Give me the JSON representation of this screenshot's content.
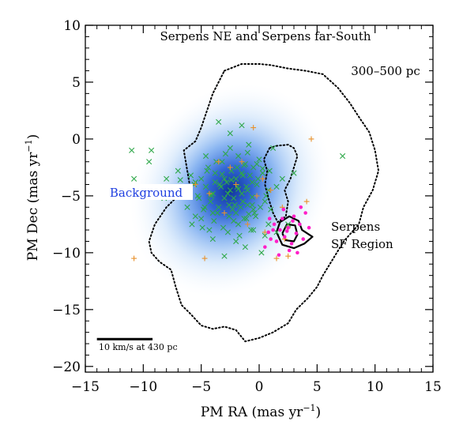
{
  "chart_data": {
    "type": "scatter",
    "title": "Serpens NE and Serpens far-South",
    "xlabel": "PM RA (mas yr",
    "xlabel_sup": "−1",
    "xlabel_end": ")",
    "ylabel": "PM Dec (mas yr",
    "ylabel_sup": "−1",
    "ylabel_end": ")",
    "xlim": [
      -15,
      15
    ],
    "ylim": [
      -20.5,
      10
    ],
    "x_ticks": [
      -15,
      -10,
      -5,
      0,
      5,
      10,
      15
    ],
    "x_tick_labels": [
      "−15",
      "−10",
      "−5",
      "0",
      "5",
      "10",
      "15"
    ],
    "y_ticks": [
      -20,
      -15,
      -10,
      -5,
      0,
      5,
      10
    ],
    "y_tick_labels": [
      "−20",
      "−15",
      "−10",
      "−5",
      "0",
      "5",
      "10"
    ],
    "grid": false,
    "annotations": {
      "distance_range": "300–500 pc",
      "background": "Background",
      "sf_region_line1": "Serpens",
      "sf_region_line2": "SF Region",
      "scale_bar": "10 km/s at 430 pc"
    },
    "colors": {
      "background_density": "#1a5ad6",
      "green_cross": "#2fa84a",
      "orange_plus": "#e8912c",
      "magenta_dot": "#ff1fc8",
      "contour": "#000000",
      "background_label": "#1f3fe0"
    },
    "background_density": {
      "center": [
        -2.5,
        -4.5
      ],
      "sigma_major": 4.6,
      "sigma_minor": 3.6,
      "tilt_deg": 55
    },
    "field_boundary": [
      [
        -3.0,
        6.0
      ],
      [
        -1.5,
        6.6
      ],
      [
        0.0,
        6.6
      ],
      [
        1.0,
        6.5
      ],
      [
        2.5,
        6.2
      ],
      [
        4.0,
        6.0
      ],
      [
        5.5,
        5.7
      ],
      [
        6.8,
        4.5
      ],
      [
        7.8,
        3.2
      ],
      [
        8.7,
        1.8
      ],
      [
        9.5,
        0.6
      ],
      [
        10.0,
        -1.0
      ],
      [
        10.3,
        -2.8
      ],
      [
        9.8,
        -4.5
      ],
      [
        9.0,
        -6.0
      ],
      [
        8.6,
        -7.5
      ],
      [
        7.3,
        -9.0
      ],
      [
        6.4,
        -10.5
      ],
      [
        5.5,
        -12.0
      ],
      [
        5.0,
        -13.0
      ],
      [
        4.2,
        -14.0
      ],
      [
        3.2,
        -15.0
      ],
      [
        2.5,
        -16.2
      ],
      [
        1.2,
        -17.0
      ],
      [
        0.0,
        -17.5
      ],
      [
        -1.2,
        -17.8
      ],
      [
        -2.0,
        -16.8
      ],
      [
        -3.0,
        -16.5
      ],
      [
        -4.0,
        -16.7
      ],
      [
        -5.0,
        -16.4
      ],
      [
        -6.0,
        -15.3
      ],
      [
        -6.7,
        -14.6
      ],
      [
        -7.2,
        -13.0
      ],
      [
        -7.6,
        -11.5
      ],
      [
        -8.6,
        -10.8
      ],
      [
        -9.3,
        -10.0
      ],
      [
        -9.5,
        -9.0
      ],
      [
        -9.0,
        -7.5
      ],
      [
        -8.0,
        -6.0
      ],
      [
        -7.0,
        -5.0
      ],
      [
        -6.0,
        -4.0
      ],
      [
        -6.5,
        -1.0
      ],
      [
        -5.5,
        -0.2
      ],
      [
        -5.0,
        1.0
      ],
      [
        -4.5,
        2.5
      ],
      [
        -4.0,
        4.0
      ],
      [
        -3.5,
        5.0
      ],
      [
        -3.0,
        6.0
      ]
    ],
    "inner_boundary": [
      [
        0.9,
        -0.8
      ],
      [
        1.5,
        -0.6
      ],
      [
        2.5,
        -0.5
      ],
      [
        3.0,
        -0.8
      ],
      [
        3.3,
        -1.5
      ],
      [
        3.0,
        -2.5
      ],
      [
        2.7,
        -3.5
      ],
      [
        2.2,
        -4.5
      ],
      [
        2.5,
        -5.5
      ],
      [
        2.3,
        -6.8
      ],
      [
        1.6,
        -7.3
      ],
      [
        1.2,
        -6.5
      ],
      [
        0.8,
        -5.2
      ],
      [
        0.5,
        -4.0
      ],
      [
        0.7,
        -2.8
      ],
      [
        0.4,
        -1.8
      ],
      [
        0.9,
        -0.8
      ]
    ],
    "contours": [
      [
        [
          1.5,
          -8.2
        ],
        [
          1.8,
          -7.3
        ],
        [
          2.6,
          -6.8
        ],
        [
          3.4,
          -7.2
        ],
        [
          3.7,
          -8.0
        ],
        [
          4.6,
          -8.6
        ],
        [
          3.9,
          -9.2
        ],
        [
          3.0,
          -9.6
        ],
        [
          2.0,
          -9.3
        ],
        [
          1.5,
          -8.2
        ]
      ],
      [
        [
          2.0,
          -8.3
        ],
        [
          2.4,
          -7.5
        ],
        [
          3.1,
          -7.6
        ],
        [
          3.3,
          -8.4
        ],
        [
          3.0,
          -9.0
        ],
        [
          2.3,
          -8.9
        ],
        [
          2.0,
          -8.3
        ]
      ]
    ],
    "series": [
      {
        "name": "",
        "marker": "x",
        "color": "#2fa84a",
        "x": [
          -11.0,
          -10.8,
          -9.3,
          -9.5,
          -8.0,
          -7.0,
          -6.5,
          -6.2,
          -5.9,
          -5.6,
          -5.3,
          -5.0,
          -4.8,
          -4.6,
          -4.4,
          -4.2,
          -4.0,
          -3.8,
          -3.6,
          -3.4,
          -3.2,
          -3.0,
          -2.9,
          -2.8,
          -2.6,
          -2.5,
          -2.4,
          -2.2,
          -2.1,
          -2.0,
          -1.9,
          -1.8,
          -1.6,
          -1.5,
          -1.4,
          -1.2,
          -1.1,
          -1.0,
          -0.9,
          -0.8,
          -0.6,
          -0.5,
          -0.4,
          -0.2,
          0.0,
          0.3,
          0.6,
          0.9,
          1.2,
          1.5,
          -5.8,
          -5.5,
          -4.9,
          -4.3,
          -3.9,
          -3.5,
          -3.1,
          -2.7,
          -2.3,
          -1.7,
          -1.3,
          -0.7,
          -0.3,
          0.5,
          1.0,
          -4.1,
          -3.3,
          -2.2,
          -1.5,
          -0.6,
          0.1,
          0.8,
          -4.6,
          -3.7,
          -2.5,
          -1.9,
          -1.0,
          -0.1,
          -6.0,
          -4.5,
          -3.0,
          -2.0,
          -1.0,
          0.5,
          -3.5,
          -2.5,
          -1.5,
          2.0,
          3.0,
          7.2,
          0.2,
          -1.2,
          -3.0,
          -4.0,
          -2.0,
          -0.5,
          1.5,
          -7.5,
          -5.0,
          -1.8,
          -0.5,
          0.8,
          -6.8,
          -3.8,
          -2.7,
          -1.4,
          -0.2,
          -5.2,
          -4.0,
          -2.6,
          -1.1,
          0.3,
          -3.2,
          -1.8,
          -0.6,
          -4.7,
          -2.4,
          -1.3,
          2.5,
          -8.2,
          -5.5,
          -4.2,
          -0.9
        ],
        "y": [
          -1.0,
          -3.5,
          -1.0,
          -2.0,
          -3.5,
          -2.8,
          -4.5,
          -6.0,
          -3.2,
          -4.0,
          -5.0,
          -3.5,
          -6.2,
          -4.2,
          -2.5,
          -5.5,
          -4.8,
          -3.0,
          -6.5,
          -4.0,
          -2.0,
          -5.2,
          -1.3,
          -3.8,
          -6.8,
          -4.5,
          -2.8,
          -7.2,
          -5.8,
          -3.5,
          -4.2,
          -1.5,
          -6.0,
          -3.0,
          -5.5,
          -2.2,
          -7.0,
          -4.5,
          -0.5,
          -3.2,
          -5.8,
          -2.5,
          -6.5,
          -4.0,
          -1.8,
          -3.0,
          -5.0,
          -2.8,
          -0.8,
          -4.2,
          -7.5,
          -6.8,
          -7.8,
          -8.0,
          -7.2,
          -6.0,
          -7.8,
          -8.2,
          -6.2,
          -8.5,
          -7.0,
          -8.0,
          -6.8,
          -5.5,
          -6.2,
          -5.0,
          -4.2,
          -5.2,
          -4.8,
          -3.8,
          -6.0,
          -7.5,
          -1.5,
          -2.0,
          -0.8,
          -2.5,
          -1.2,
          -3.5,
          -5.0,
          -2.8,
          -3.5,
          -6.5,
          -5.8,
          -8.5,
          1.5,
          0.5,
          1.2,
          -3.5,
          -3.0,
          -1.5,
          -10.0,
          -9.5,
          -10.3,
          -8.8,
          -9.0,
          -8.0,
          -8.2,
          -4.8,
          -7.0,
          -7.5,
          -6.2,
          -4.5,
          -3.6,
          -3.8,
          -4.8,
          -3.2,
          -2.2,
          -5.2,
          -6.5,
          -5.8,
          -4.2,
          -2.6,
          -3.1,
          -4.4,
          -5.1,
          -6.0,
          -3.6,
          -2.3,
          -7.5,
          -5.2,
          -3.8,
          -4.9,
          -6.6
        ],
        "marker_size": 3.2
      },
      {
        "name": "",
        "marker": "plus",
        "color": "#e8912c",
        "x": [
          -10.8,
          -4.7,
          -4.3,
          -5.5,
          -3.5,
          -0.5,
          0.3,
          1.0,
          2.0,
          2.5,
          4.1,
          4.5,
          2.5,
          -2.5,
          -1.0,
          -0.2,
          -1.5,
          1.5,
          -3.0,
          -2.0,
          0.5,
          2.2
        ],
        "y": [
          -10.5,
          -10.5,
          -4.8,
          -4.0,
          -2.0,
          1.0,
          -3.5,
          -4.5,
          -6.0,
          -7.8,
          -5.5,
          -0.0,
          -10.3,
          -2.5,
          -7.5,
          -5.0,
          -2.0,
          -10.5,
          -6.5,
          -4.0,
          -8.2,
          -8.8
        ],
        "marker_size": 3.4
      },
      {
        "name": "",
        "marker": "dot",
        "color": "#ff1fc8",
        "x": [
          0.5,
          0.8,
          1.0,
          1.3,
          1.5,
          1.8,
          2.0,
          2.2,
          2.5,
          2.8,
          3.0,
          3.2,
          3.5,
          3.8,
          4.0,
          2.1,
          2.6,
          3.3,
          1.7,
          0.9,
          2.4,
          3.6,
          1.2,
          2.9,
          4.3
        ],
        "y": [
          -9.5,
          -8.2,
          -8.8,
          -7.5,
          -9.0,
          -8.0,
          -7.0,
          -8.6,
          -7.8,
          -9.2,
          -6.8,
          -8.3,
          -7.5,
          -8.8,
          -6.5,
          -6.2,
          -9.8,
          -10.0,
          -10.2,
          -7.0,
          -8.1,
          -6.0,
          -8.0,
          -7.2,
          -7.8
        ],
        "marker_size": 2.3
      }
    ],
    "scale_bar_x": [
      -14,
      -9.2
    ],
    "scale_bar_y": -17.6
  }
}
